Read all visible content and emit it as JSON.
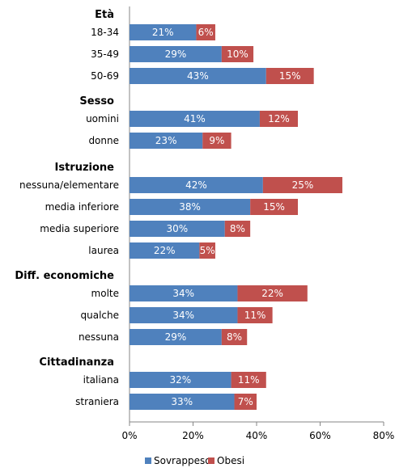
{
  "chart_data": {
    "type": "bar",
    "orientation": "horizontal",
    "stacked": true,
    "groups": [
      {
        "name": "Età",
        "categories": [
          "18-34",
          "35-49",
          "50-69"
        ]
      },
      {
        "name": "Sesso",
        "categories": [
          "uomini",
          "donne"
        ]
      },
      {
        "name": "Istruzione",
        "categories": [
          "nessuna/elementare",
          "media inferiore",
          "media superiore",
          "laurea"
        ]
      },
      {
        "name": "Diff. economiche",
        "categories": [
          "molte",
          "qualche",
          "nessuna"
        ]
      },
      {
        "name": "Cittadinanza",
        "categories": [
          "italiana",
          "straniera"
        ]
      }
    ],
    "series": [
      {
        "name": "Sovrappeso",
        "color": "#4f81bd",
        "values": [
          21,
          29,
          43,
          41,
          23,
          42,
          38,
          30,
          22,
          34,
          34,
          29,
          32,
          33
        ]
      },
      {
        "name": "Obesi",
        "color": "#c0504d",
        "values": [
          6,
          10,
          15,
          12,
          9,
          25,
          15,
          8,
          5,
          22,
          11,
          8,
          11,
          7
        ]
      }
    ],
    "value_suffix": "%",
    "xlim": [
      0,
      80
    ],
    "xticks": [
      "0%",
      "20%",
      "40%",
      "60%",
      "80%"
    ],
    "grid": false,
    "legend": "bottom"
  }
}
